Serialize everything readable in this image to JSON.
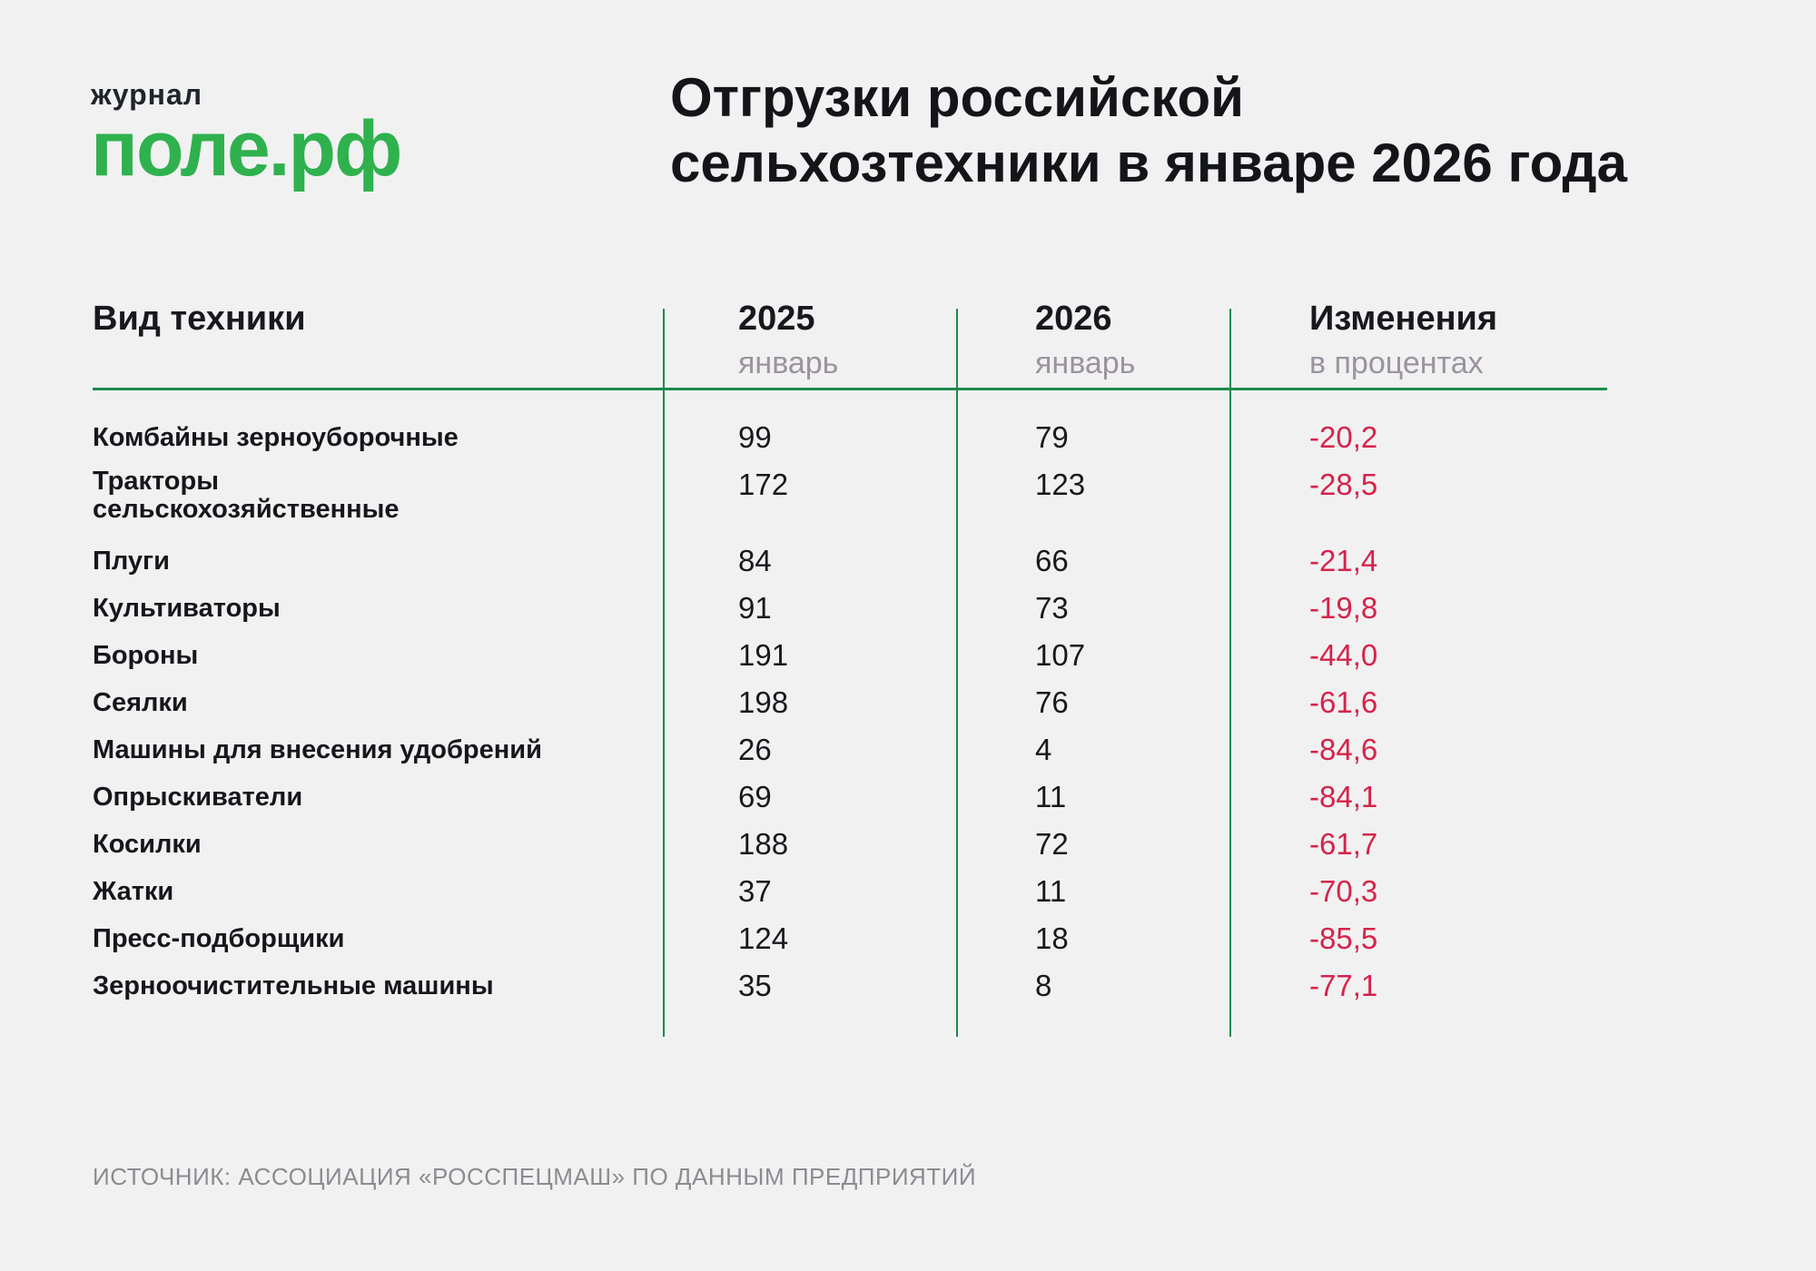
{
  "logo": {
    "top": "журнал",
    "main": "поле.рф"
  },
  "title": {
    "line1": "Отгрузки российской",
    "line2": "сельхозтехники в январе 2026 года"
  },
  "table": {
    "headers": {
      "col1": "Вид техники",
      "col2_year": "2025",
      "col2_sub": "январь",
      "col3_year": "2026",
      "col3_sub": "январь",
      "col4_title": "Изменения",
      "col4_sub": "в процентах"
    },
    "rows": [
      {
        "name": "Комбайны зерноуборочные",
        "v2025": "99",
        "v2026": "79",
        "change": "-20,2"
      },
      {
        "name": "Тракторы сельскохозяйственные",
        "v2025": "172",
        "v2026": "123",
        "change": "-28,5"
      },
      {
        "name": "Плуги",
        "v2025": "84",
        "v2026": "66",
        "change": "-21,4"
      },
      {
        "name": "Культиваторы",
        "v2025": "91",
        "v2026": "73",
        "change": "-19,8"
      },
      {
        "name": "Бороны",
        "v2025": "191",
        "v2026": "107",
        "change": "-44,0"
      },
      {
        "name": "Сеялки",
        "v2025": "198",
        "v2026": "76",
        "change": "-61,6"
      },
      {
        "name": "Машины для внесения удобрений",
        "v2025": "26",
        "v2026": "4",
        "change": "-84,6"
      },
      {
        "name": "Опрыскиватели",
        "v2025": "69",
        "v2026": "11",
        "change": "-84,1"
      },
      {
        "name": "Косилки",
        "v2025": "188",
        "v2026": "72",
        "change": "-61,7"
      },
      {
        "name": "Жатки",
        "v2025": "37",
        "v2026": "11",
        "change": "-70,3"
      },
      {
        "name": "Пресс-подборщики",
        "v2025": "124",
        "v2026": "18",
        "change": "-85,5"
      },
      {
        "name": "Зерноочистительные машины",
        "v2025": "35",
        "v2026": "8",
        "change": "-77,1"
      }
    ]
  },
  "source": "ИСТОЧНИК: АССОЦИАЦИЯ «РОССПЕЦМАШ» ПО ДАННЫМ ПРЕДПРИЯТИЙ",
  "colors": {
    "background": "#f1f1f2",
    "brand_green": "#2fb14e",
    "line_green": "#1c8a4d",
    "negative_red": "#d6234b",
    "muted_gray": "#9b939e",
    "text_dark": "#17191d"
  },
  "chart_data": {
    "type": "table",
    "title": "Отгрузки российской сельхозтехники в январе 2026 года",
    "columns": [
      "Вид техники",
      "2025 январь",
      "2026 январь",
      "Изменения в процентах"
    ],
    "rows": [
      [
        "Комбайны зерноуборочные",
        99,
        79,
        -20.2
      ],
      [
        "Тракторы сельскохозяйственные",
        172,
        123,
        -28.5
      ],
      [
        "Плуги",
        84,
        66,
        -21.4
      ],
      [
        "Культиваторы",
        91,
        73,
        -19.8
      ],
      [
        "Бороны",
        191,
        107,
        -44.0
      ],
      [
        "Сеялки",
        198,
        76,
        -61.6
      ],
      [
        "Машины для внесения удобрений",
        26,
        4,
        -84.6
      ],
      [
        "Опрыскиватели",
        69,
        11,
        -84.1
      ],
      [
        "Косилки",
        188,
        72,
        -61.7
      ],
      [
        "Жатки",
        37,
        11,
        -70.3
      ],
      [
        "Пресс-подборщики",
        124,
        18,
        -85.5
      ],
      [
        "Зерноочистительные машины",
        35,
        8,
        -77.1
      ]
    ],
    "source": "ИСТОЧНИК: АССОЦИАЦИЯ «РОССПЕЦМАШ» ПО ДАННЫМ ПРЕДПРИЯТИЙ"
  }
}
